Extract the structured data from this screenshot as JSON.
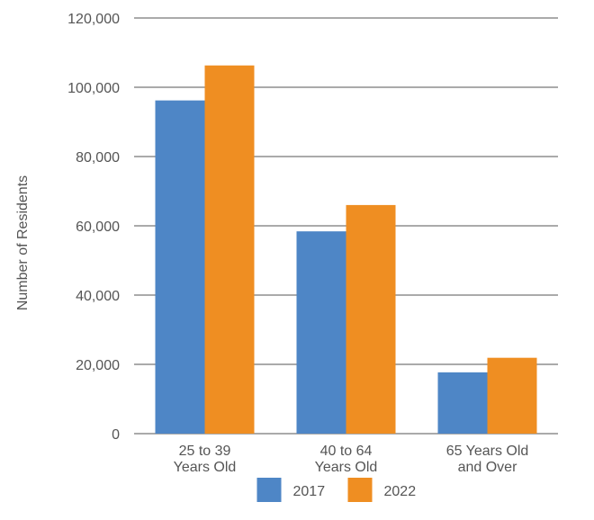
{
  "chart_data": {
    "type": "bar",
    "title": "",
    "xlabel": "",
    "ylabel": "Number of Residents",
    "categories": [
      [
        "25 to 39",
        "Years Old"
      ],
      [
        "40 to 64",
        "Years Old"
      ],
      [
        "65 Years Old",
        "and Over"
      ]
    ],
    "series": [
      {
        "name": "2017",
        "color": "#4e86c6",
        "values": [
          96200,
          58400,
          17700
        ]
      },
      {
        "name": "2022",
        "color": "#ef8e22",
        "values": [
          106300,
          66000,
          21900
        ]
      }
    ],
    "ylim": [
      0,
      120000
    ],
    "yticks": [
      "0",
      "20,000",
      "40,000",
      "60,000",
      "80,000",
      "100,000",
      "120,000"
    ],
    "ytick_values": [
      0,
      20000,
      40000,
      60000,
      80000,
      100000,
      120000
    ],
    "grid": true,
    "legend_position": "bottom-center",
    "gridline_color": "#555555"
  }
}
